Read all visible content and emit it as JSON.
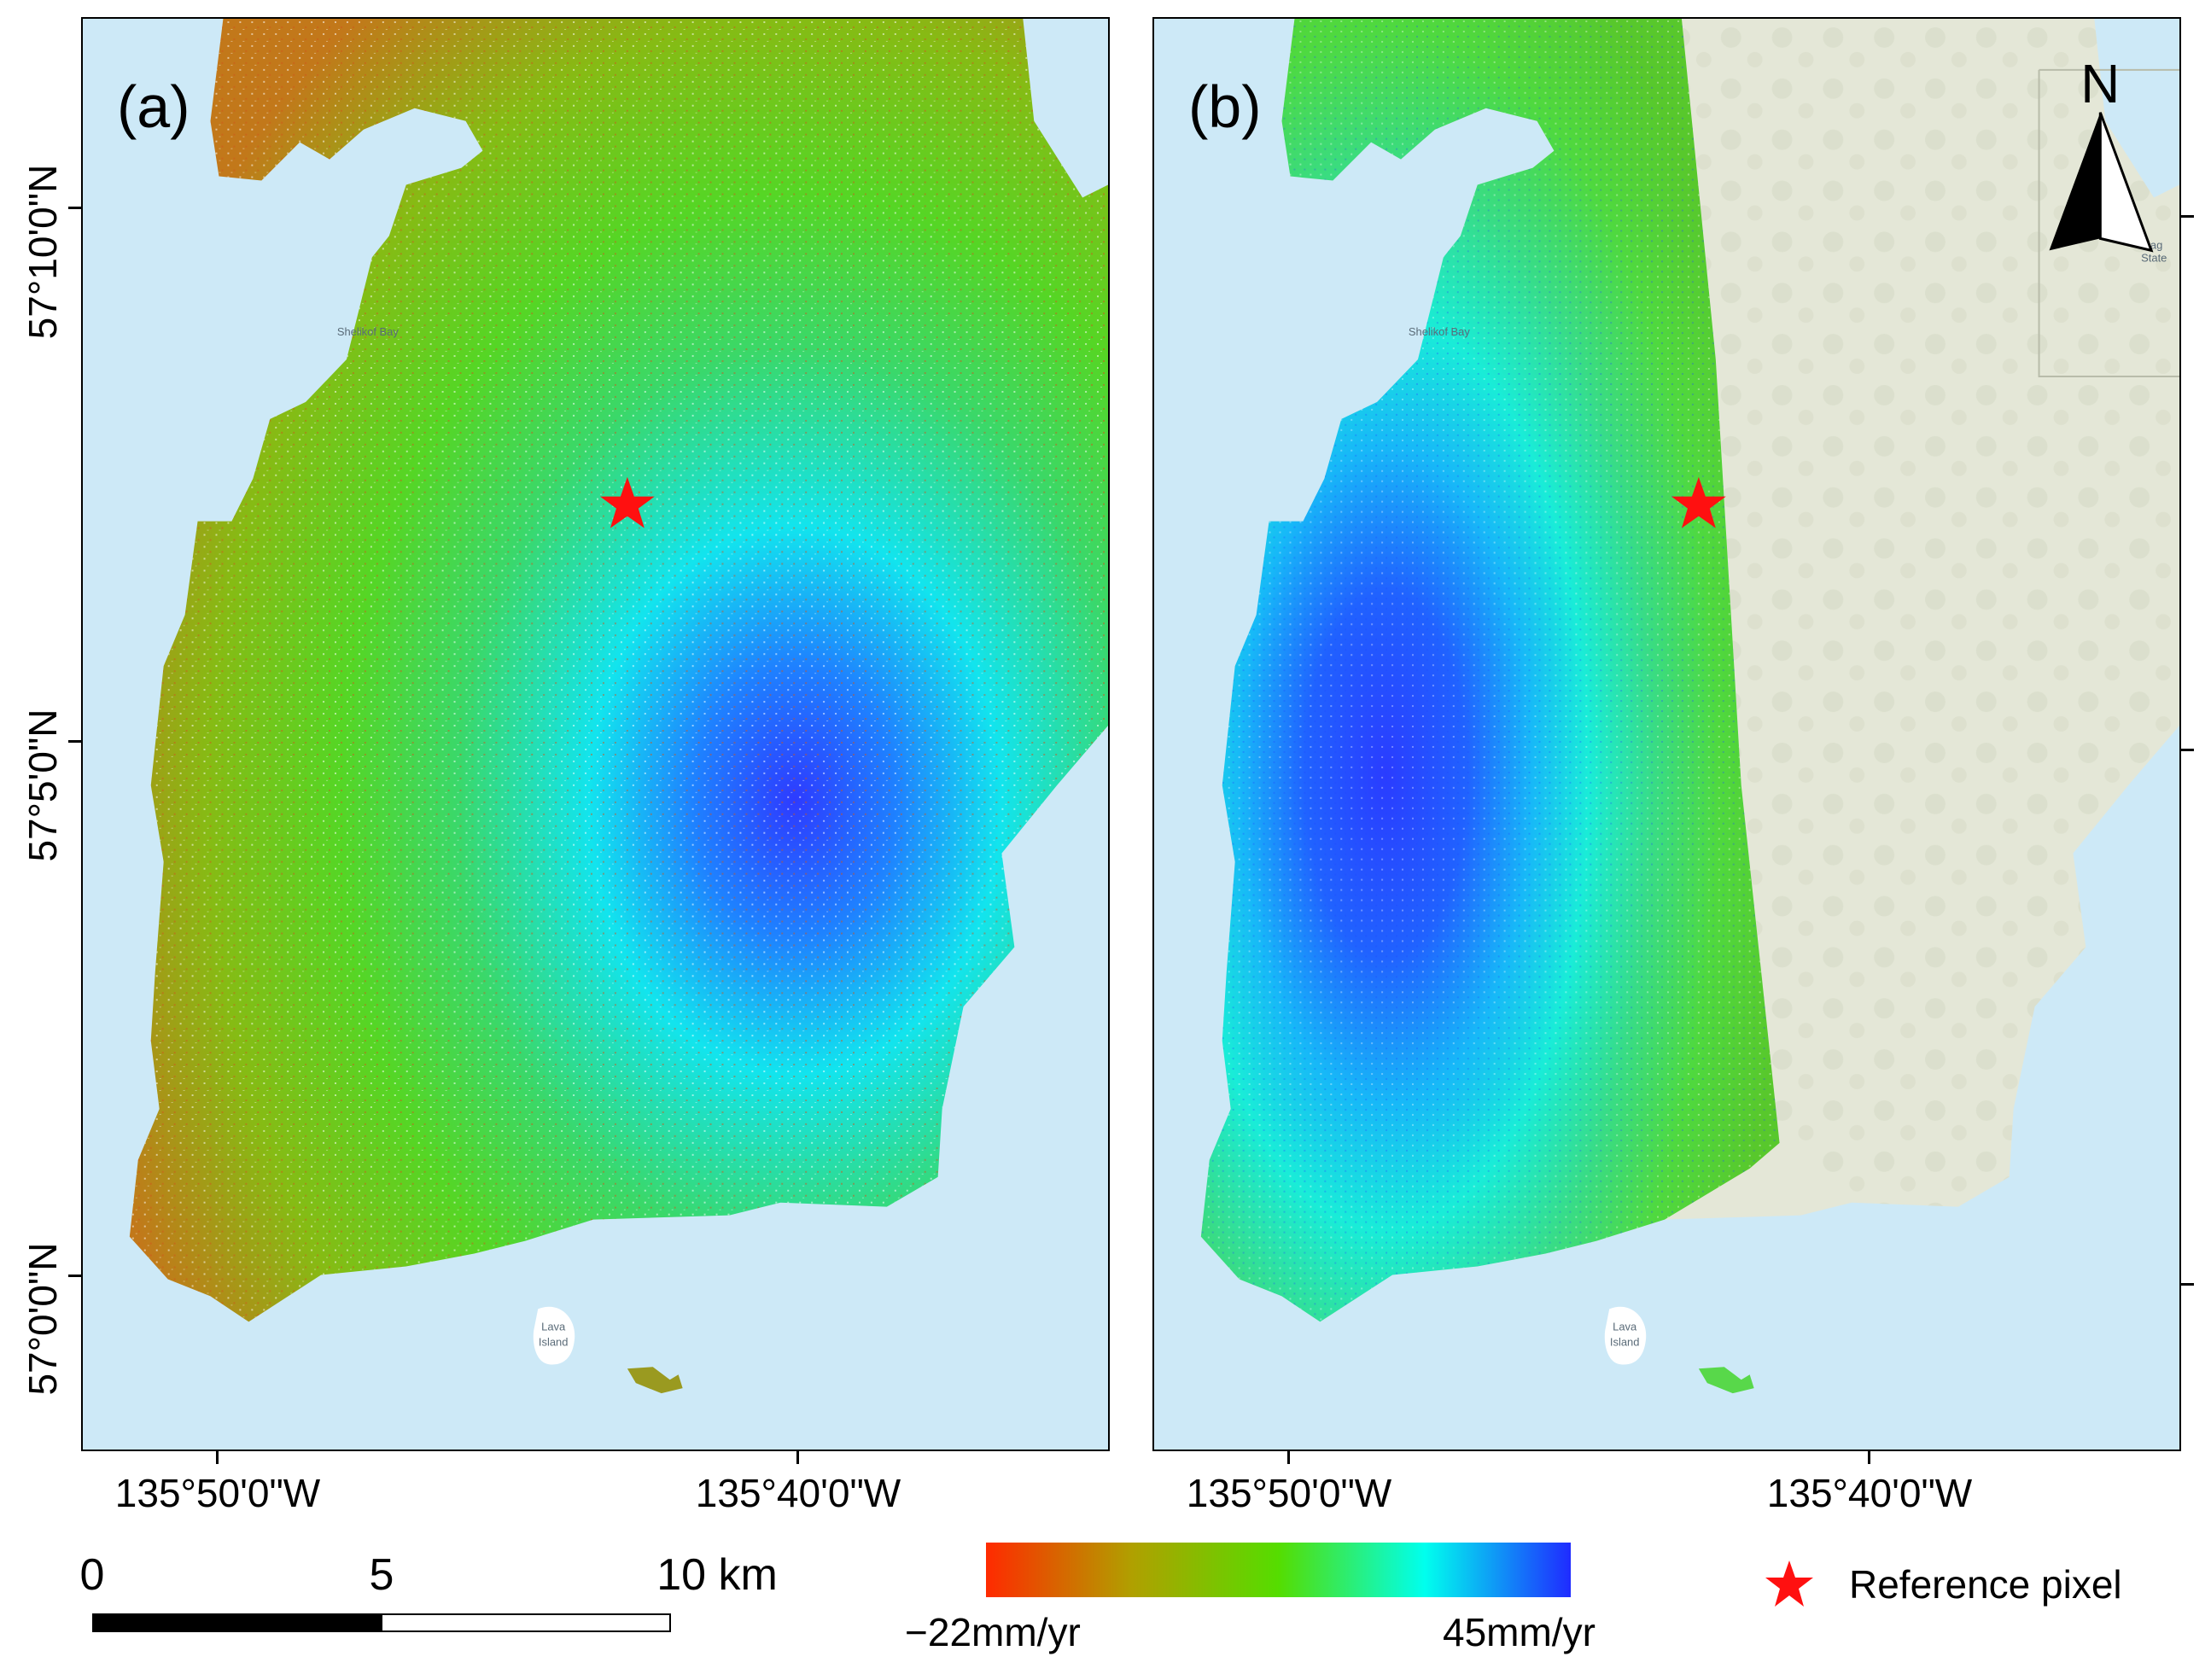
{
  "panels": [
    {
      "label": "(a)"
    },
    {
      "label": "(b)"
    }
  ],
  "latitude_labels": [
    "57°10'0\"N",
    "57°5'0\"N",
    "57°0'0\"N"
  ],
  "longitude_labels": [
    "135°50'0\"W",
    "135°40'0\"W"
  ],
  "place_names": {
    "bay": "Shelikof Bay",
    "island_line1": "Lava",
    "island_line2": "Island",
    "corner1": "Mag",
    "corner2": "State"
  },
  "north_arrow": "N",
  "scale_bar": {
    "ticks": [
      "0",
      "5",
      "10 km"
    ]
  },
  "colorbar": {
    "min_label": "−22mm/yr",
    "max_label": "45mm/yr",
    "colors": [
      "#ff2a00",
      "#b0a000",
      "#55dd00",
      "#00ffee",
      "#1f2bff"
    ]
  },
  "legend": {
    "reference_label": "Reference pixel",
    "star_color": "#ff1010"
  },
  "colors": {
    "water": "#cde9f7",
    "land": "#e4e7d7",
    "land_pattern": "#d6dac6"
  }
}
